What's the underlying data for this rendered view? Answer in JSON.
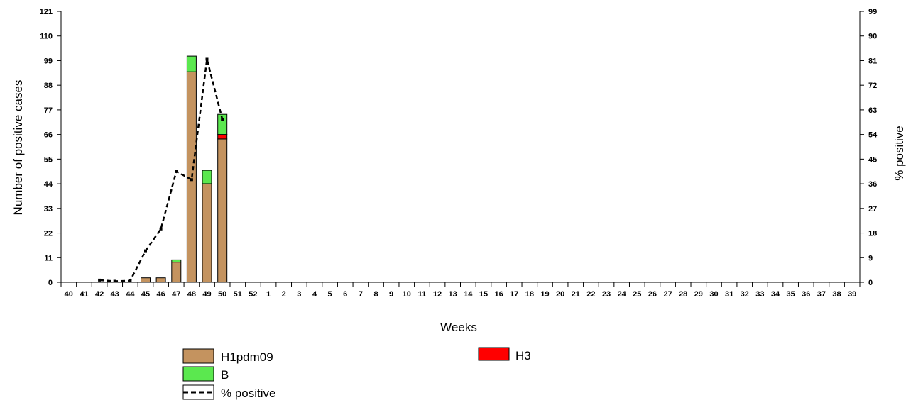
{
  "chart_data": {
    "type": "bar",
    "stacked": true,
    "categories": [
      "40",
      "41",
      "42",
      "43",
      "44",
      "45",
      "46",
      "47",
      "48",
      "49",
      "50",
      "51",
      "52",
      "1",
      "2",
      "3",
      "4",
      "5",
      "6",
      "7",
      "8",
      "9",
      "10",
      "11",
      "12",
      "13",
      "14",
      "15",
      "16",
      "17",
      "18",
      "19",
      "20",
      "21",
      "22",
      "23",
      "24",
      "25",
      "26",
      "27",
      "28",
      "29",
      "30",
      "31",
      "32",
      "33",
      "34",
      "35",
      "36",
      "37",
      "38",
      "39"
    ],
    "xlabel": "Weeks",
    "ylabel": "Number of positive cases",
    "y2label": "% positive",
    "ylim": [
      0,
      121
    ],
    "y2lim": [
      0,
      99
    ],
    "yticks": [
      "0",
      "11",
      "22",
      "33",
      "44",
      "55",
      "66",
      "77",
      "88",
      "99",
      "110",
      "121"
    ],
    "y2ticks": [
      "0",
      "9",
      "18",
      "27",
      "36",
      "45",
      "54",
      "63",
      "72",
      "81",
      "90",
      "99"
    ],
    "series": [
      {
        "name": "H1pdm09",
        "color": "#c4935f",
        "values": [
          0,
          0,
          0,
          0,
          0,
          2,
          2,
          9,
          94,
          44,
          64,
          0,
          0,
          0,
          0,
          0,
          0,
          0,
          0,
          0,
          0,
          0,
          0,
          0,
          0,
          0,
          0,
          0,
          0,
          0,
          0,
          0,
          0,
          0,
          0,
          0,
          0,
          0,
          0,
          0,
          0,
          0,
          0,
          0,
          0,
          0,
          0,
          0,
          0,
          0,
          0,
          0
        ]
      },
      {
        "name": "H3",
        "color": "#ff0000",
        "values": [
          0,
          0,
          0,
          0,
          0,
          0,
          0,
          0,
          0,
          0,
          2,
          0,
          0,
          0,
          0,
          0,
          0,
          0,
          0,
          0,
          0,
          0,
          0,
          0,
          0,
          0,
          0,
          0,
          0,
          0,
          0,
          0,
          0,
          0,
          0,
          0,
          0,
          0,
          0,
          0,
          0,
          0,
          0,
          0,
          0,
          0,
          0,
          0,
          0,
          0,
          0,
          0
        ]
      },
      {
        "name": "B",
        "color": "#5be84f",
        "values": [
          0,
          0,
          0,
          0,
          0,
          0,
          0,
          1,
          7,
          6,
          9,
          0,
          0,
          0,
          0,
          0,
          0,
          0,
          0,
          0,
          0,
          0,
          0,
          0,
          0,
          0,
          0,
          0,
          0,
          0,
          0,
          0,
          0,
          0,
          0,
          0,
          0,
          0,
          0,
          0,
          0,
          0,
          0,
          0,
          0,
          0,
          0,
          0,
          0,
          0,
          0,
          0
        ]
      }
    ],
    "line": {
      "name": "% positive",
      "axis": "right",
      "points": [
        [
          "42",
          0.8
        ],
        [
          "43",
          0.4
        ],
        [
          "44",
          0.6
        ],
        [
          "45",
          11.5
        ],
        [
          "46",
          19.5
        ],
        [
          "47",
          40.5
        ],
        [
          "48",
          37.5
        ],
        [
          "49",
          81.5
        ],
        [
          "50",
          59.5
        ]
      ]
    },
    "legend": {
      "position": "bottom"
    },
    "grid": false
  }
}
